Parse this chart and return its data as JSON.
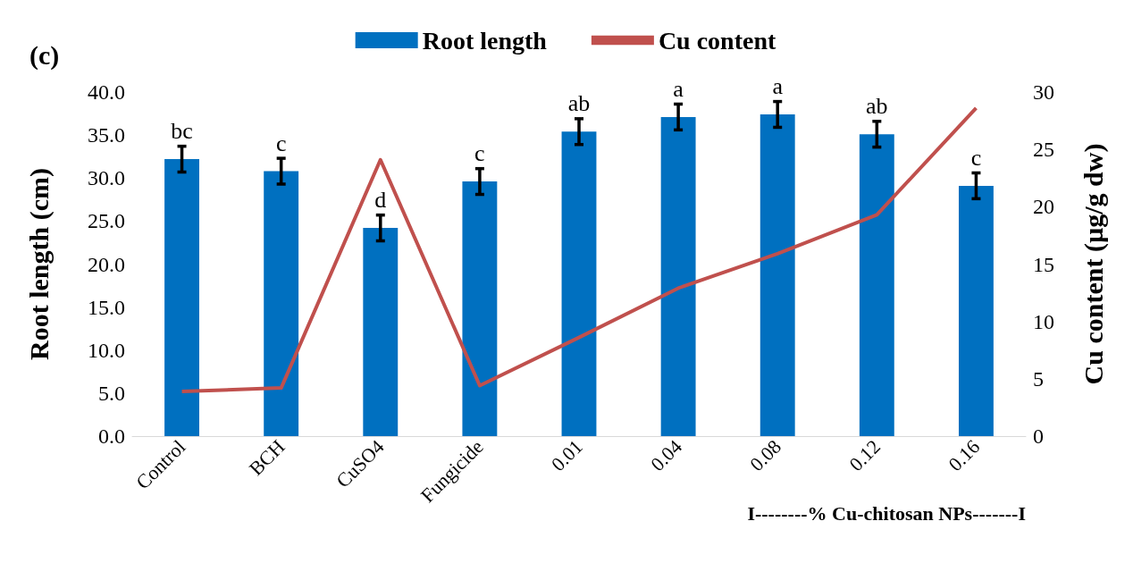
{
  "chart_data": {
    "type": "bar",
    "categories": [
      "Control",
      "BCH",
      "CuSO4",
      "Fungicide",
      "0.01",
      "0.04",
      "0.08",
      "0.12",
      "0.16"
    ],
    "series": [
      {
        "name": "Root length",
        "color": "#0070c0",
        "values": [
          32.2,
          30.8,
          24.2,
          29.6,
          35.4,
          37.1,
          37.4,
          35.1,
          29.1
        ],
        "errors": [
          1.5,
          1.5,
          1.5,
          1.5,
          1.5,
          1.5,
          1.5,
          1.5,
          1.5
        ]
      },
      {
        "name": "Cu content",
        "type": "line",
        "axis": "y2",
        "color": "#c0504d",
        "values": [
          3.9,
          4.2,
          24.1,
          4.4,
          8.6,
          12.9,
          15.9,
          19.3,
          28.6
        ]
      }
    ],
    "xlabel": "I--------% Cu-chitosan NPs-------I",
    "ylabel": "Root length (cm)",
    "y2label": "Cu content (µg/g dw)",
    "ylim": [
      0,
      40
    ],
    "yticks": [
      {
        "value": 0,
        "label": "0.0"
      },
      {
        "value": 5,
        "label": "5.0"
      },
      {
        "value": 10,
        "label": "10.0"
      },
      {
        "value": 15,
        "label": "15.0"
      },
      {
        "value": 20,
        "label": "20.0"
      },
      {
        "value": 25,
        "label": "25.0"
      },
      {
        "value": 30,
        "label": "30.0"
      },
      {
        "value": 35,
        "label": "35.0"
      },
      {
        "value": 40,
        "label": "40.0"
      }
    ],
    "y2lim": [
      0,
      30
    ],
    "y2ticks": [
      0,
      5,
      10,
      15,
      20,
      25,
      30
    ],
    "annotations": [
      "(c)",
      "bc",
      "c",
      "d",
      "c",
      "ab",
      "a",
      "a",
      "ab",
      "c"
    ],
    "legend": "top",
    "grid": false,
    "marker": "none",
    "line_style": "solid"
  }
}
